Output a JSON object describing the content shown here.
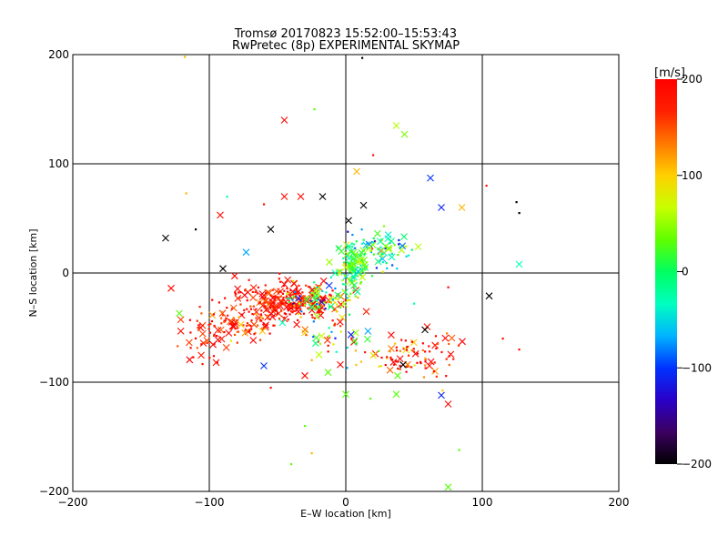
{
  "chart_data": {
    "type": "scatter",
    "title": "Tromsø 20170823 15:52:00–15:53:43",
    "subtitle": "RwPretec (8p) EXPERIMENTAL SKYMAP",
    "xlabel": "E–W location [km]",
    "ylabel": "N–S location [km]",
    "xlim": [
      -200,
      200
    ],
    "ylim": [
      -200,
      200
    ],
    "xticks": [
      -200,
      -100,
      0,
      100,
      200
    ],
    "yticks": [
      -200,
      -100,
      0,
      100,
      200
    ],
    "xtick_labels": [
      "−200",
      "−100",
      "0",
      "100",
      "200"
    ],
    "ytick_labels": [
      "−200",
      "−100",
      "0",
      "100",
      "200"
    ],
    "grid": true,
    "colorbar": {
      "label": "[m/s]",
      "range": [
        -200,
        200
      ],
      "ticks": [
        200,
        100,
        0,
        -100,
        -200
      ],
      "tick_labels": [
        "200",
        "100",
        "0",
        "−100",
        "−200"
      ],
      "colors": [
        "#000000",
        "#3c0060",
        "#2a00c8",
        "#0032ff",
        "#00b4ff",
        "#00ffc0",
        "#00ff60",
        "#60ff00",
        "#c8ff00",
        "#ffd000",
        "#ff7800",
        "#ff2000",
        "#ff0000"
      ]
    },
    "markers": {
      "small": "point",
      "large": "x"
    },
    "clusters": [
      {
        "cx": -45,
        "cy": -25,
        "sx": 18,
        "sy": 8,
        "n": 230,
        "v": 185,
        "vs": 30
      },
      {
        "cx": -20,
        "cy": -25,
        "sx": 12,
        "sy": 7,
        "n": 90,
        "v": 40,
        "vs": 110
      },
      {
        "cx": -75,
        "cy": -45,
        "sx": 15,
        "sy": 8,
        "n": 90,
        "v": 180,
        "vs": 35
      },
      {
        "cx": 5,
        "cy": 5,
        "sx": 6,
        "sy": 10,
        "n": 110,
        "v": 15,
        "vs": 35
      },
      {
        "cx": 25,
        "cy": 20,
        "sx": 12,
        "sy": 9,
        "n": 80,
        "v": -20,
        "vs": 55
      },
      {
        "cx": 50,
        "cy": -75,
        "sx": 15,
        "sy": 11,
        "n": 90,
        "v": 175,
        "vs": 50
      },
      {
        "cx": -105,
        "cy": -60,
        "sx": 10,
        "sy": 12,
        "n": 45,
        "v": 185,
        "vs": 25
      },
      {
        "cx": -10,
        "cy": -60,
        "sx": 15,
        "sy": 12,
        "n": 50,
        "v": 100,
        "vs": 130
      }
    ],
    "isolated_points": [
      {
        "x": -45,
        "y": 140,
        "v": 190,
        "m": "x"
      },
      {
        "x": 37,
        "y": 135,
        "v": 60,
        "m": "x"
      },
      {
        "x": 43,
        "y": 127,
        "v": 40,
        "m": "x"
      },
      {
        "x": 62,
        "y": 87,
        "v": -100,
        "m": "x"
      },
      {
        "x": 70,
        "y": 60,
        "v": -110,
        "m": "x"
      },
      {
        "x": 85,
        "y": 60,
        "v": 110,
        "m": "x"
      },
      {
        "x": 8,
        "y": 93,
        "v": 110,
        "m": "x"
      },
      {
        "x": 127,
        "y": 8,
        "v": -30,
        "m": "x"
      },
      {
        "x": 105,
        "y": -21,
        "v": -200,
        "m": "x"
      },
      {
        "x": -132,
        "y": 32,
        "v": -200,
        "m": "x"
      },
      {
        "x": -128,
        "y": -14,
        "v": 190,
        "m": "x"
      },
      {
        "x": -122,
        "y": -37,
        "v": 30,
        "m": "x"
      },
      {
        "x": -95,
        "y": -82,
        "v": 190,
        "m": "x"
      },
      {
        "x": -90,
        "y": 4,
        "v": -200,
        "m": "x"
      },
      {
        "x": -92,
        "y": 53,
        "v": 190,
        "m": "x"
      },
      {
        "x": -73,
        "y": 19,
        "v": -70,
        "m": "x"
      },
      {
        "x": -55,
        "y": 40,
        "v": -200,
        "m": "x"
      },
      {
        "x": -45,
        "y": 70,
        "v": 190,
        "m": "x"
      },
      {
        "x": -33,
        "y": 70,
        "v": 190,
        "m": "x"
      },
      {
        "x": -17,
        "y": 70,
        "v": -200,
        "m": "x"
      },
      {
        "x": 2,
        "y": 48,
        "v": -200,
        "m": "x"
      },
      {
        "x": 13,
        "y": 62,
        "v": -200,
        "m": "x"
      },
      {
        "x": 0,
        "y": -111,
        "v": 30,
        "m": "x"
      },
      {
        "x": 37,
        "y": -111,
        "v": 30,
        "m": "x"
      },
      {
        "x": 38,
        "y": -94,
        "v": 30,
        "m": "x"
      },
      {
        "x": 75,
        "y": -196,
        "v": 30,
        "m": "x"
      },
      {
        "x": -30,
        "y": -94,
        "v": 190,
        "m": "x"
      },
      {
        "x": -13,
        "y": -91,
        "v": 30,
        "m": "x"
      },
      {
        "x": -60,
        "y": -85,
        "v": -100,
        "m": "x"
      },
      {
        "x": 70,
        "y": -112,
        "v": -110,
        "m": "x"
      },
      {
        "x": 75,
        "y": -120,
        "v": 190,
        "m": "x"
      },
      {
        "x": 58,
        "y": -52,
        "v": -200,
        "m": "x"
      },
      {
        "x": 42,
        "y": -84,
        "v": -200,
        "m": "x"
      },
      {
        "x": -23,
        "y": 150,
        "v": 30,
        "m": "."
      },
      {
        "x": 12,
        "y": 197,
        "v": -200,
        "m": "."
      },
      {
        "x": -118,
        "y": 198,
        "v": 110,
        "m": "."
      },
      {
        "x": 20,
        "y": 108,
        "v": 190,
        "m": "."
      },
      {
        "x": -117,
        "y": 73,
        "v": 110,
        "m": "."
      },
      {
        "x": 103,
        "y": 80,
        "v": 190,
        "m": "."
      },
      {
        "x": 125,
        "y": 65,
        "v": -200,
        "m": "."
      },
      {
        "x": 127,
        "y": 55,
        "v": -200,
        "m": "."
      },
      {
        "x": 115,
        "y": -60,
        "v": 190,
        "m": "."
      },
      {
        "x": 127,
        "y": -70,
        "v": 190,
        "m": "."
      },
      {
        "x": -30,
        "y": -140,
        "v": 30,
        "m": "."
      },
      {
        "x": -40,
        "y": -175,
        "v": 30,
        "m": "."
      },
      {
        "x": -25,
        "y": -165,
        "v": 110,
        "m": "."
      },
      {
        "x": 83,
        "y": -162,
        "v": 30,
        "m": "."
      },
      {
        "x": 18,
        "y": -115,
        "v": 30,
        "m": "."
      },
      {
        "x": -55,
        "y": -105,
        "v": 190,
        "m": "."
      },
      {
        "x": 75,
        "y": -13,
        "v": 190,
        "m": "."
      },
      {
        "x": 50,
        "y": -28,
        "v": -30,
        "m": "."
      },
      {
        "x": -110,
        "y": 40,
        "v": -200,
        "m": "."
      },
      {
        "x": -87,
        "y": 70,
        "v": -30,
        "m": "."
      },
      {
        "x": -60,
        "y": 63,
        "v": 190,
        "m": "."
      }
    ]
  }
}
